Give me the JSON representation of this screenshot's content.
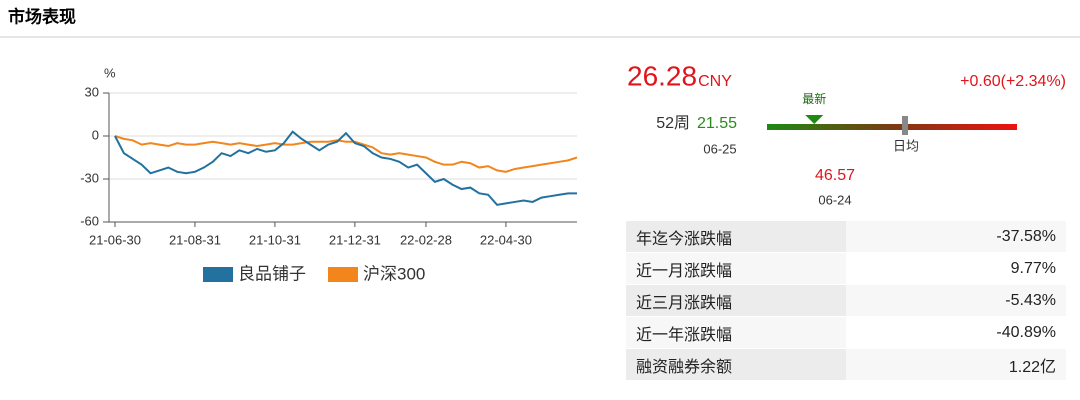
{
  "header": {
    "title": "市场表现"
  },
  "chart_data": {
    "type": "line",
    "y_label": "%",
    "categories": [
      "21-06-30",
      null,
      null,
      null,
      null,
      null,
      null,
      null,
      null,
      "21-08-31",
      null,
      null,
      null,
      null,
      null,
      null,
      null,
      null,
      "21-10-31",
      null,
      null,
      null,
      null,
      null,
      null,
      null,
      null,
      "21-12-31",
      null,
      null,
      null,
      null,
      null,
      null,
      null,
      "22-02-28",
      null,
      null,
      null,
      null,
      null,
      null,
      null,
      null,
      "22-04-30",
      null,
      null,
      null,
      null,
      null,
      null,
      null,
      null
    ],
    "series": [
      {
        "name": "良品铺子",
        "color": "#22719e",
        "values": [
          0,
          -12,
          -16,
          -20,
          -26,
          -24,
          -22,
          -25,
          -26,
          -25,
          -22,
          -18,
          -12,
          -14,
          -10,
          -12,
          -9,
          -11,
          -10,
          -5,
          3,
          -2,
          -6,
          -10,
          -6,
          -4,
          2,
          -5,
          -7,
          -12,
          -15,
          -16,
          -18,
          -22,
          -20,
          -26,
          -32,
          -30,
          -34,
          -37,
          -36,
          -40,
          -41,
          -48,
          -47,
          -46,
          -45,
          -46,
          -43,
          -42,
          -41,
          -40,
          -40
        ]
      },
      {
        "name": "沪深300",
        "color": "#f2861c",
        "values": [
          0,
          -2,
          -3,
          -6,
          -5,
          -6,
          -7,
          -5,
          -6,
          -6,
          -5,
          -4,
          -5,
          -6,
          -5,
          -6,
          -7,
          -6,
          -5,
          -6,
          -6,
          -5,
          -4,
          -4,
          -4,
          -3,
          -4,
          -4,
          -6,
          -8,
          -12,
          -13,
          -12,
          -13,
          -14,
          -15,
          -18,
          -20,
          -20,
          -18,
          -19,
          -22,
          -21,
          -24,
          -25,
          -23,
          -22,
          -21,
          -20,
          -19,
          -18,
          -17,
          -15
        ]
      }
    ],
    "ylim": [
      -60,
      30
    ],
    "yticks": [
      -60,
      -30,
      0,
      30
    ],
    "grid": true
  },
  "quote": {
    "price": 26.28,
    "currency": "CNY",
    "change": "+0.60(+2.34%)",
    "week52_label": "52周",
    "low": 21.55,
    "low_date": "06-25",
    "high": 46.57,
    "high_date": "06-24",
    "latest_label": "最新",
    "mean_label": "日均"
  },
  "table": {
    "rows": [
      [
        "年迄今涨跌幅",
        "-37.58%"
      ],
      [
        "近一月涨跌幅",
        "9.77%"
      ],
      [
        "近三月涨跌幅",
        "-5.43%"
      ],
      [
        "近一年涨跌幅",
        "-40.89%"
      ],
      [
        "融资融券余额",
        "1.22亿"
      ]
    ]
  }
}
